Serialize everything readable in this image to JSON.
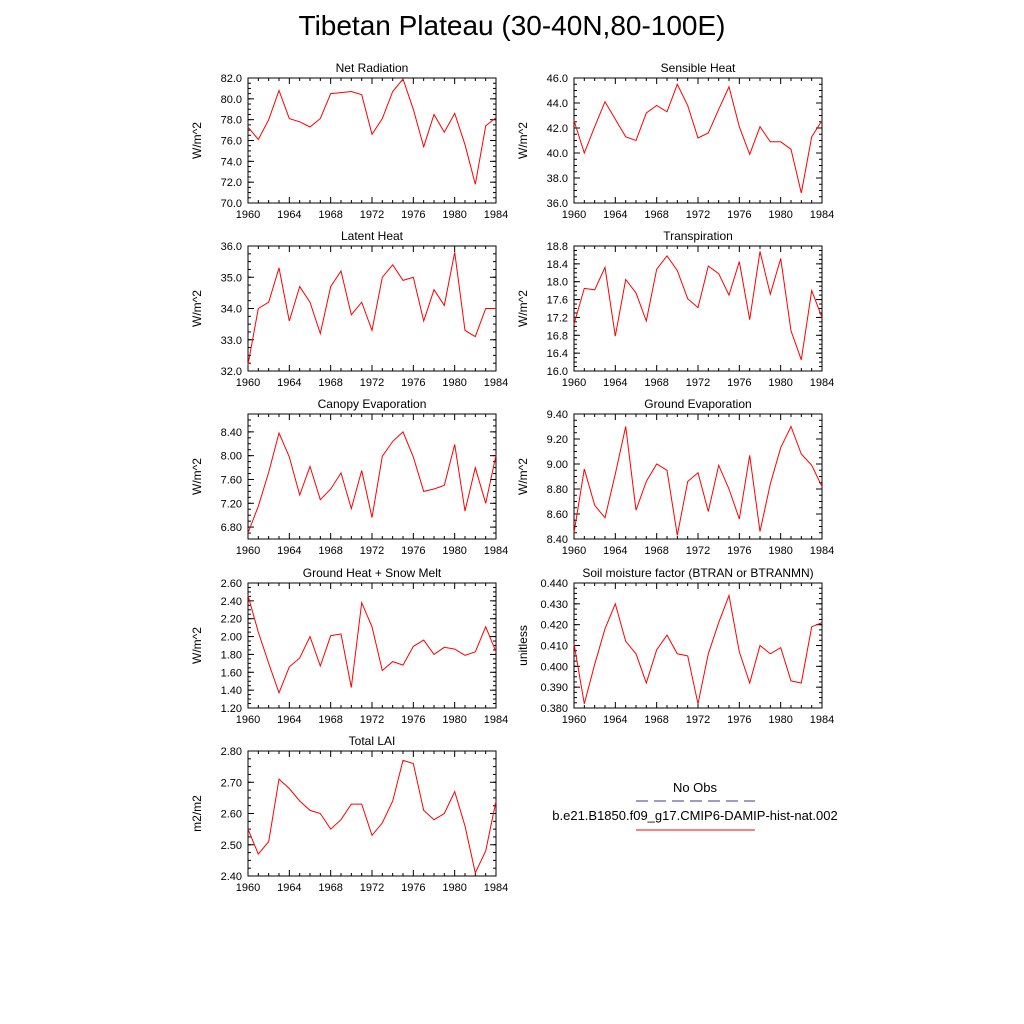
{
  "page_title": "Tibetan Plateau (30-40N,80-100E)",
  "legend": {
    "obs_label": "No Obs",
    "model_label": "b.e21.B1850.f09_g17.CMIP6-DAMIP-hist-nat.002",
    "obs_color": "#3a3a8c",
    "model_color": "#ff0000"
  },
  "chart_data": [
    {
      "type": "line",
      "title": "Net Radiation",
      "ylabel": "W/m^2",
      "xlim": [
        1960,
        1984
      ],
      "ylim": [
        70.0,
        82.0
      ],
      "xticks": [
        "1960",
        "1964",
        "1968",
        "1972",
        "1976",
        "1980",
        "1984"
      ],
      "yticks": [
        "70.0",
        "72.0",
        "74.0",
        "76.0",
        "78.0",
        "80.0",
        "82.0"
      ],
      "x": [
        1960,
        1961,
        1962,
        1963,
        1964,
        1965,
        1966,
        1967,
        1968,
        1969,
        1970,
        1971,
        1972,
        1973,
        1974,
        1975,
        1976,
        1977,
        1978,
        1979,
        1980,
        1981,
        1982,
        1983,
        1984
      ],
      "series": [
        {
          "color": "#ff0000",
          "values": [
            77.3,
            76.1,
            78.0,
            80.8,
            78.1,
            77.8,
            77.3,
            78.1,
            80.5,
            80.6,
            80.7,
            80.4,
            76.6,
            78.1,
            80.7,
            81.9,
            79.0,
            75.4,
            78.5,
            76.8,
            78.6,
            75.6,
            71.8,
            77.4,
            78.2
          ]
        }
      ]
    },
    {
      "type": "line",
      "title": "Sensible Heat",
      "ylabel": "W/m^2",
      "xlim": [
        1960,
        1984
      ],
      "ylim": [
        36.0,
        46.0
      ],
      "xticks": [
        "1960",
        "1964",
        "1968",
        "1972",
        "1976",
        "1980",
        "1984"
      ],
      "yticks": [
        "36.0",
        "38.0",
        "40.0",
        "42.0",
        "44.0",
        "46.0"
      ],
      "x": [
        1960,
        1961,
        1962,
        1963,
        1964,
        1965,
        1966,
        1967,
        1968,
        1969,
        1970,
        1971,
        1972,
        1973,
        1974,
        1975,
        1976,
        1977,
        1978,
        1979,
        1980,
        1981,
        1982,
        1983,
        1984
      ],
      "series": [
        {
          "color": "#ff0000",
          "values": [
            42.6,
            40.0,
            42.1,
            44.1,
            42.7,
            41.3,
            41.0,
            43.2,
            43.8,
            43.3,
            45.5,
            43.8,
            41.2,
            41.6,
            43.5,
            45.3,
            42.1,
            39.9,
            42.1,
            40.9,
            40.9,
            40.3,
            36.8,
            41.3,
            42.6
          ]
        }
      ]
    },
    {
      "type": "line",
      "title": "Latent Heat",
      "ylabel": "W/m^2",
      "xlim": [
        1960,
        1984
      ],
      "ylim": [
        32.0,
        36.0
      ],
      "xticks": [
        "1960",
        "1964",
        "1968",
        "1972",
        "1976",
        "1980",
        "1984"
      ],
      "yticks": [
        "32.0",
        "33.0",
        "34.0",
        "35.0",
        "36.0"
      ],
      "x": [
        1960,
        1961,
        1962,
        1963,
        1964,
        1965,
        1966,
        1967,
        1968,
        1969,
        1970,
        1971,
        1972,
        1973,
        1974,
        1975,
        1976,
        1977,
        1978,
        1979,
        1980,
        1981,
        1982,
        1983,
        1984
      ],
      "series": [
        {
          "color": "#ff0000",
          "values": [
            32.2,
            34.0,
            34.2,
            35.3,
            33.6,
            34.7,
            34.2,
            33.2,
            34.7,
            35.2,
            33.8,
            34.2,
            33.3,
            35.0,
            35.4,
            34.9,
            35.0,
            33.6,
            34.6,
            34.1,
            35.8,
            33.3,
            33.1,
            34.0,
            34.0
          ]
        }
      ]
    },
    {
      "type": "line",
      "title": "Transpiration",
      "ylabel": "W/m^2",
      "xlim": [
        1960,
        1984
      ],
      "ylim": [
        16.0,
        18.8
      ],
      "xticks": [
        "1960",
        "1964",
        "1968",
        "1972",
        "1976",
        "1980",
        "1984"
      ],
      "yticks": [
        "16.0",
        "16.4",
        "16.8",
        "17.2",
        "17.6",
        "18.0",
        "18.4",
        "18.8"
      ],
      "x": [
        1960,
        1961,
        1962,
        1963,
        1964,
        1965,
        1966,
        1967,
        1968,
        1969,
        1970,
        1971,
        1972,
        1973,
        1974,
        1975,
        1976,
        1977,
        1978,
        1979,
        1980,
        1981,
        1982,
        1983,
        1984
      ],
      "series": [
        {
          "color": "#ff0000",
          "values": [
            17.05,
            17.85,
            17.82,
            18.32,
            16.78,
            18.05,
            17.75,
            17.12,
            18.28,
            18.58,
            18.25,
            17.62,
            17.42,
            18.35,
            18.18,
            17.7,
            18.45,
            17.15,
            18.68,
            17.72,
            18.52,
            16.9,
            16.25,
            17.8,
            17.2
          ]
        }
      ]
    },
    {
      "type": "line",
      "title": "Canopy Evaporation",
      "ylabel": "W/m^2",
      "xlim": [
        1960,
        1984
      ],
      "ylim": [
        6.6,
        8.7
      ],
      "xticks": [
        "1960",
        "1964",
        "1968",
        "1972",
        "1976",
        "1980",
        "1984"
      ],
      "yticks": [
        "6.80",
        "7.20",
        "7.60",
        "8.00",
        "8.40"
      ],
      "x": [
        1960,
        1961,
        1962,
        1963,
        1964,
        1965,
        1966,
        1967,
        1968,
        1969,
        1970,
        1971,
        1972,
        1973,
        1974,
        1975,
        1976,
        1977,
        1978,
        1979,
        1980,
        1981,
        1982,
        1983,
        1984
      ],
      "series": [
        {
          "color": "#ff0000",
          "values": [
            6.7,
            7.15,
            7.72,
            8.38,
            7.98,
            7.34,
            7.82,
            7.26,
            7.44,
            7.71,
            7.11,
            7.75,
            6.96,
            7.99,
            8.24,
            8.4,
            7.98,
            7.4,
            7.44,
            7.5,
            8.19,
            7.07,
            7.8,
            7.2,
            8.01
          ]
        }
      ]
    },
    {
      "type": "line",
      "title": "Ground Evaporation",
      "ylabel": "W/m^2",
      "xlim": [
        1960,
        1984
      ],
      "ylim": [
        8.4,
        9.4
      ],
      "xticks": [
        "1960",
        "1964",
        "1968",
        "1972",
        "1976",
        "1980",
        "1984"
      ],
      "yticks": [
        "8.40",
        "8.60",
        "8.80",
        "9.00",
        "9.20",
        "9.40"
      ],
      "x": [
        1960,
        1961,
        1962,
        1963,
        1964,
        1965,
        1966,
        1967,
        1968,
        1969,
        1970,
        1971,
        1972,
        1973,
        1974,
        1975,
        1976,
        1977,
        1978,
        1979,
        1980,
        1981,
        1982,
        1983,
        1984
      ],
      "series": [
        {
          "color": "#ff0000",
          "values": [
            8.45,
            8.96,
            8.67,
            8.57,
            8.92,
            9.3,
            8.63,
            8.86,
            9.0,
            8.95,
            8.43,
            8.86,
            8.93,
            8.62,
            8.99,
            8.8,
            8.56,
            9.07,
            8.46,
            8.84,
            9.13,
            9.3,
            9.08,
            8.99,
            8.82
          ]
        }
      ]
    },
    {
      "type": "line",
      "title": "Ground Heat + Snow Melt",
      "ylabel": "W/m^2",
      "xlim": [
        1960,
        1984
      ],
      "ylim": [
        1.2,
        2.6
      ],
      "xticks": [
        "1960",
        "1964",
        "1968",
        "1972",
        "1976",
        "1980",
        "1984"
      ],
      "yticks": [
        "1.20",
        "1.40",
        "1.60",
        "1.80",
        "2.00",
        "2.20",
        "2.40",
        "2.60"
      ],
      "x": [
        1960,
        1961,
        1962,
        1963,
        1964,
        1965,
        1966,
        1967,
        1968,
        1969,
        1970,
        1971,
        1972,
        1973,
        1974,
        1975,
        1976,
        1977,
        1978,
        1979,
        1980,
        1981,
        1982,
        1983,
        1984
      ],
      "series": [
        {
          "color": "#ff0000",
          "values": [
            2.46,
            2.05,
            1.7,
            1.37,
            1.66,
            1.76,
            2.0,
            1.67,
            2.01,
            2.03,
            1.43,
            2.38,
            2.11,
            1.62,
            1.72,
            1.68,
            1.89,
            1.96,
            1.8,
            1.88,
            1.86,
            1.79,
            1.83,
            2.11,
            1.83
          ]
        }
      ]
    },
    {
      "type": "line",
      "title": "Soil moisture factor (BTRAN or BTRANMN)",
      "ylabel": "unitless",
      "xlim": [
        1960,
        1984
      ],
      "ylim": [
        0.38,
        0.44
      ],
      "xticks": [
        "1960",
        "1964",
        "1968",
        "1972",
        "1976",
        "1980",
        "1984"
      ],
      "yticks": [
        "0.380",
        "0.390",
        "0.400",
        "0.410",
        "0.420",
        "0.430",
        "0.440"
      ],
      "x": [
        1960,
        1961,
        1962,
        1963,
        1964,
        1965,
        1966,
        1967,
        1968,
        1969,
        1970,
        1971,
        1972,
        1973,
        1974,
        1975,
        1976,
        1977,
        1978,
        1979,
        1980,
        1981,
        1982,
        1983,
        1984
      ],
      "series": [
        {
          "color": "#ff0000",
          "values": [
            0.411,
            0.382,
            0.401,
            0.418,
            0.43,
            0.412,
            0.406,
            0.392,
            0.408,
            0.415,
            0.406,
            0.405,
            0.382,
            0.406,
            0.421,
            0.434,
            0.407,
            0.392,
            0.41,
            0.406,
            0.409,
            0.393,
            0.392,
            0.419,
            0.421
          ]
        }
      ]
    },
    {
      "type": "line",
      "title": "Total LAI",
      "ylabel": "m2/m2",
      "xlim": [
        1960,
        1984
      ],
      "ylim": [
        2.4,
        2.8
      ],
      "xticks": [
        "1960",
        "1964",
        "1968",
        "1972",
        "1976",
        "1980",
        "1984"
      ],
      "yticks": [
        "2.40",
        "2.50",
        "2.60",
        "2.70",
        "2.80"
      ],
      "x": [
        1960,
        1961,
        1962,
        1963,
        1964,
        1965,
        1966,
        1967,
        1968,
        1969,
        1970,
        1971,
        1972,
        1973,
        1974,
        1975,
        1976,
        1977,
        1978,
        1979,
        1980,
        1981,
        1982,
        1983,
        1984
      ],
      "series": [
        {
          "color": "#ff0000",
          "values": [
            2.55,
            2.47,
            2.51,
            2.71,
            2.68,
            2.64,
            2.61,
            2.6,
            2.55,
            2.58,
            2.63,
            2.63,
            2.53,
            2.57,
            2.64,
            2.77,
            2.76,
            2.61,
            2.58,
            2.6,
            2.67,
            2.56,
            2.41,
            2.48,
            2.64
          ]
        }
      ]
    }
  ]
}
